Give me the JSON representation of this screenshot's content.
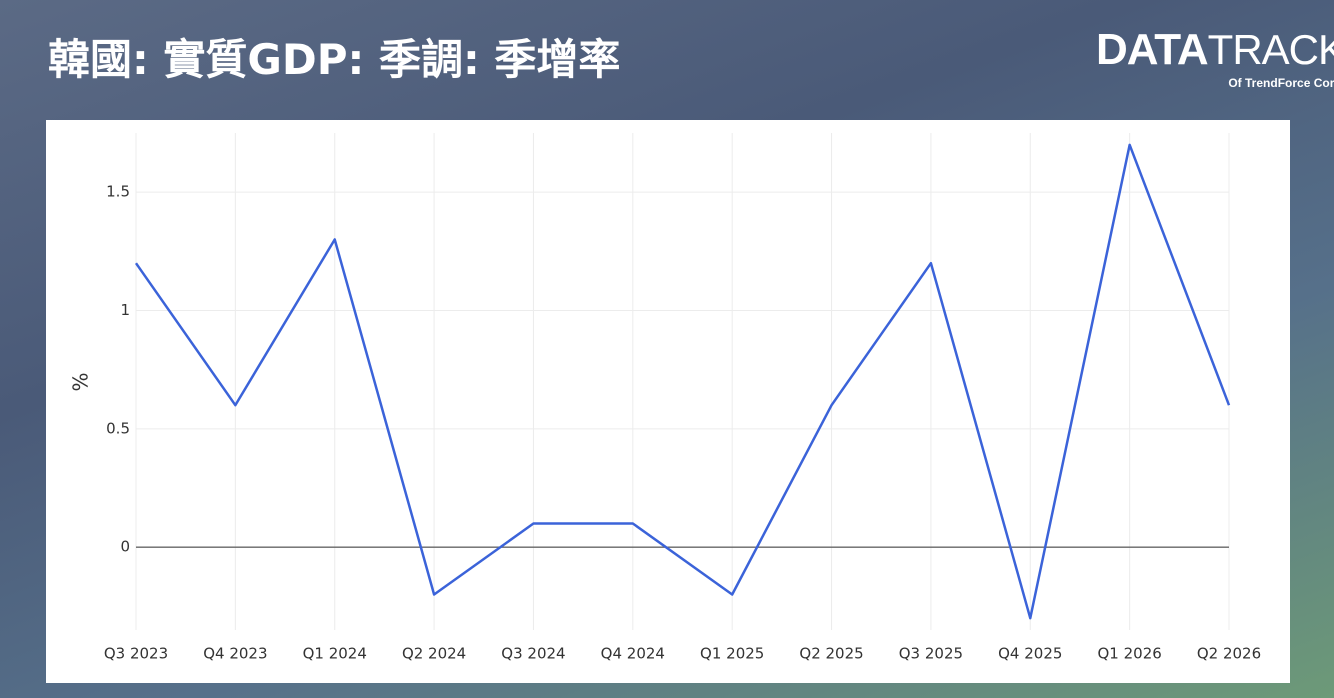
{
  "header": {
    "title": "韓國: 實質GDP: 季調: 季增率",
    "logo_bold": "DATA",
    "logo_light": "TRACK",
    "logo_of": "Of",
    "logo_company": "TrendForce Corp."
  },
  "chart_data": {
    "type": "line",
    "y_label": "%",
    "categories": [
      "Q3 2023",
      "Q4 2023",
      "Q1 2024",
      "Q2 2024",
      "Q3 2024",
      "Q4 2024",
      "Q1 2025",
      "Q2 2025",
      "Q3 2025",
      "Q4 2025",
      "Q1 2026",
      "Q2 2026"
    ],
    "values": [
      1.2,
      0.6,
      1.3,
      -0.2,
      0.1,
      0.1,
      -0.2,
      0.6,
      1.2,
      -0.3,
      1.7,
      0.6
    ],
    "color": "#3b63d9",
    "ylim": [
      -0.35,
      1.75
    ],
    "yticks": [
      0,
      0.5,
      1,
      1.5
    ],
    "grid": true
  }
}
